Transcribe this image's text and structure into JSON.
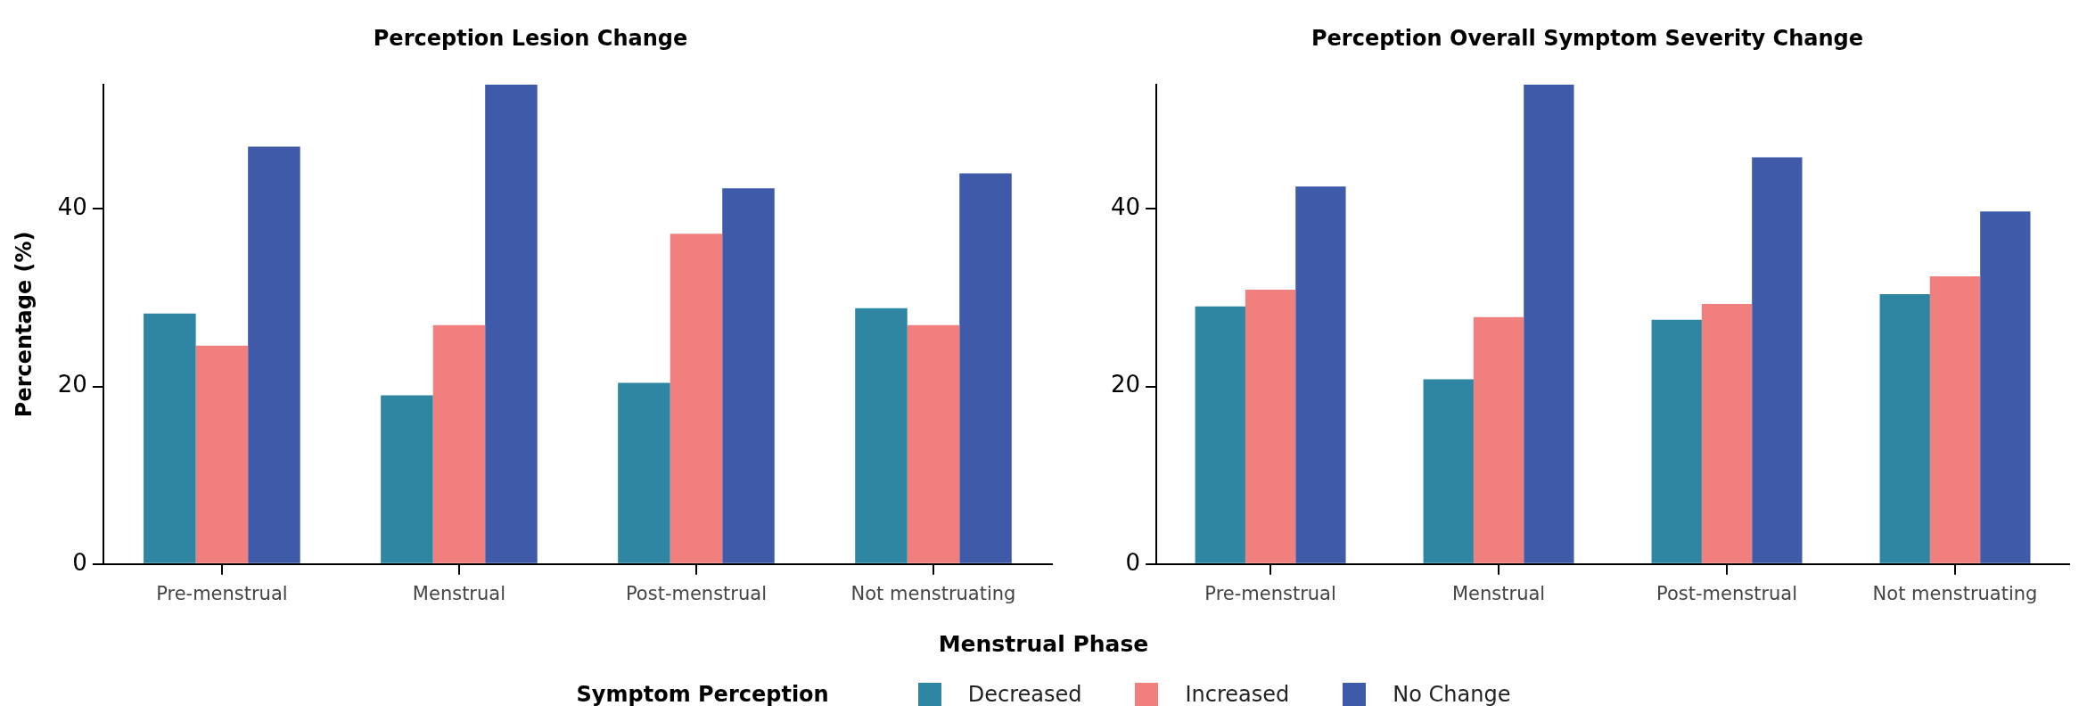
{
  "chart_data": [
    {
      "type": "bar",
      "title": "Perception Lesion Change",
      "xlabel": "Menstrual Phase",
      "ylabel": "Percentage (%)",
      "legend_title": "Symptom Perception",
      "legend": "bottom",
      "grid": false,
      "categories": [
        "Pre-menstrual",
        "Menstrual",
        "Post-menstrual",
        "Not menstruating"
      ],
      "ylim": [
        0,
        54
      ],
      "yticks": [
        0,
        20,
        40
      ],
      "series": [
        {
          "name": "Decreased",
          "color": "#2e86a3",
          "values": [
            28.2,
            19.0,
            20.4,
            28.8
          ]
        },
        {
          "name": "Increased",
          "color": "#f07f7e",
          "values": [
            24.6,
            26.9,
            37.2,
            26.9
          ]
        },
        {
          "name": "No Change",
          "color": "#3e5aa8",
          "values": [
            47.0,
            54.0,
            42.3,
            44.0
          ]
        }
      ]
    },
    {
      "type": "bar",
      "title": "Perception Overall Symptom Severity Change",
      "grid": false,
      "categories": [
        "Pre-menstrual",
        "Menstrual",
        "Post-menstrual",
        "Not menstruating"
      ],
      "ylim": [
        0,
        54
      ],
      "yticks": [
        0,
        20,
        40
      ],
      "series": [
        {
          "color": "#2e86a3",
          "values": [
            29.0,
            20.8,
            27.5,
            30.4
          ]
        },
        {
          "color": "#f07f7e",
          "values": [
            30.9,
            27.8,
            29.3,
            32.4
          ]
        },
        {
          "color": "#3e5aa8",
          "values": [
            42.5,
            54.0,
            45.8,
            39.7
          ]
        }
      ]
    }
  ]
}
